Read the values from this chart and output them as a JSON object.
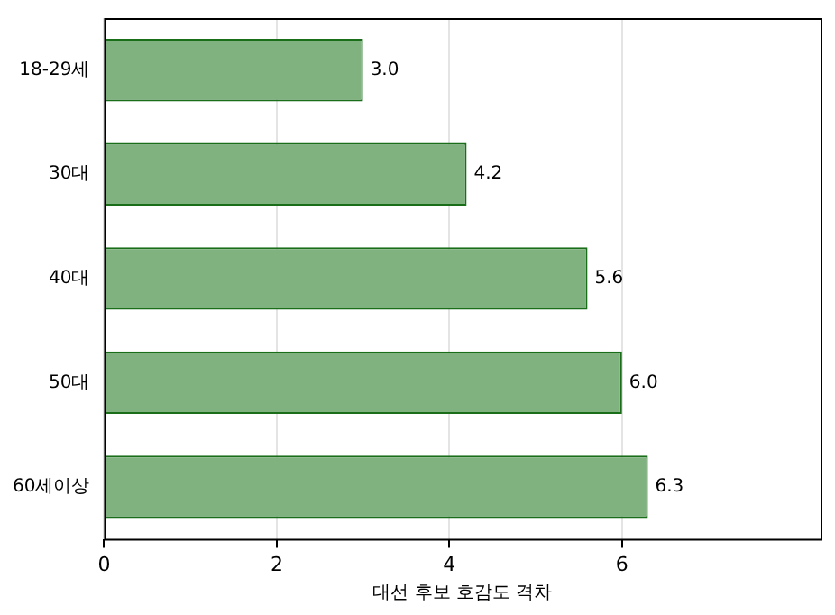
{
  "chart_data": {
    "type": "bar",
    "orientation": "horizontal",
    "xlabel": "대선 후보 호감도 격차",
    "categories": [
      "18-29세",
      "30대",
      "40대",
      "50대",
      "60세이상"
    ],
    "values": [
      3.0,
      4.2,
      5.6,
      6.0,
      6.3
    ],
    "color": "#80b280",
    "xlim": [
      0,
      8.3
    ],
    "xticks": [
      0,
      2,
      4,
      6
    ],
    "value_labels": [
      "3.0",
      "4.2",
      "5.6",
      "6.0",
      "6.3"
    ],
    "grid": "x",
    "legend": false
  }
}
